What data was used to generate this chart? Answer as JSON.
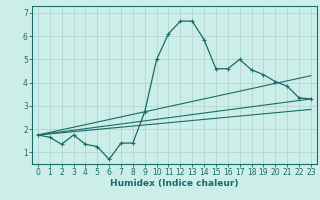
{
  "title": "",
  "xlabel": "Humidex (Indice chaleur)",
  "background_color": "#cceee8",
  "grid_color": "#b8d8d4",
  "line_color": "#1a6b6b",
  "xlim": [
    -0.5,
    23.5
  ],
  "ylim": [
    0.5,
    7.3
  ],
  "yticks": [
    1,
    2,
    3,
    4,
    5,
    6,
    7
  ],
  "xticks": [
    0,
    1,
    2,
    3,
    4,
    5,
    6,
    7,
    8,
    9,
    10,
    11,
    12,
    13,
    14,
    15,
    16,
    17,
    18,
    19,
    20,
    21,
    22,
    23
  ],
  "main_line_x": [
    0,
    1,
    2,
    3,
    4,
    5,
    6,
    7,
    8,
    9,
    10,
    11,
    12,
    13,
    14,
    15,
    16,
    17,
    18,
    19,
    20,
    21,
    22,
    23
  ],
  "main_line_y": [
    1.75,
    1.65,
    1.35,
    1.75,
    1.35,
    1.25,
    0.7,
    1.4,
    1.4,
    2.75,
    5.0,
    6.1,
    6.65,
    6.65,
    5.85,
    4.6,
    4.6,
    5.0,
    4.55,
    4.35,
    4.05,
    3.85,
    3.35,
    3.3
  ],
  "trend_lines": [
    {
      "x": [
        0,
        23
      ],
      "y": [
        1.75,
        4.3
      ]
    },
    {
      "x": [
        0,
        23
      ],
      "y": [
        1.75,
        3.3
      ]
    },
    {
      "x": [
        0,
        23
      ],
      "y": [
        1.75,
        2.85
      ]
    }
  ],
  "xlabel_fontsize": 6.5,
  "tick_fontsize": 5.5
}
